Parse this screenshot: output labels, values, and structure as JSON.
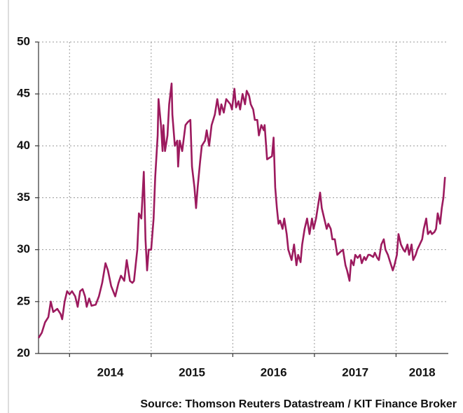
{
  "chart_data": {
    "type": "line",
    "source": "Source: Thomson Reuters Datastream / KIT Finance Broker",
    "xlim": [
      2013.62,
      2018.64
    ],
    "xticks": [
      2014,
      2015,
      2016,
      2017,
      2018
    ],
    "ylim": [
      20,
      50
    ],
    "yticks": [
      20,
      25,
      30,
      35,
      40,
      45,
      50
    ],
    "grid": true,
    "series": [
      {
        "color": "#9c1a5e",
        "x": [
          2013.62,
          2013.66,
          2013.7,
          2013.74,
          2013.77,
          2013.8,
          2013.85,
          2013.89,
          2013.91,
          2013.94,
          2013.97,
          2014.0,
          2014.03,
          2014.07,
          2014.1,
          2014.13,
          2014.16,
          2014.19,
          2014.21,
          2014.24,
          2014.27,
          2014.32,
          2014.36,
          2014.4,
          2014.44,
          2014.47,
          2014.51,
          2014.56,
          2014.6,
          2014.63,
          2014.67,
          2014.7,
          2014.74,
          2014.77,
          2014.79,
          2014.83,
          2014.85,
          2014.88,
          2014.91,
          2014.93,
          2014.95,
          2014.97,
          2015.0,
          2015.03,
          2015.05,
          2015.08,
          2015.09,
          2015.12,
          2015.14,
          2015.15,
          2015.17,
          2015.2,
          2015.22,
          2015.25,
          2015.26,
          2015.29,
          2015.32,
          2015.33,
          2015.35,
          2015.38,
          2015.42,
          2015.45,
          2015.48,
          2015.5,
          2015.53,
          2015.55,
          2015.57,
          2015.6,
          2015.62,
          2015.66,
          2015.68,
          2015.71,
          2015.74,
          2015.78,
          2015.81,
          2015.84,
          2015.86,
          2015.89,
          2015.92,
          2015.97,
          2015.99,
          2016.02,
          2016.04,
          2016.07,
          2016.09,
          2016.12,
          2016.15,
          2016.17,
          2016.2,
          2016.22,
          2016.25,
          2016.27,
          2016.3,
          2016.32,
          2016.35,
          2016.38,
          2016.39,
          2016.42,
          2016.44,
          2016.48,
          2016.5,
          2016.52,
          2016.54,
          2016.56,
          2016.58,
          2016.61,
          2016.63,
          2016.66,
          2016.68,
          2016.72,
          2016.75,
          2016.78,
          2016.8,
          2016.83,
          2016.85,
          2016.88,
          2016.91,
          2016.94,
          2016.97,
          2016.99,
          2017.02,
          2017.04,
          2017.07,
          2017.09,
          2017.12,
          2017.15,
          2017.17,
          2017.2,
          2017.22,
          2017.25,
          2017.28,
          2017.32,
          2017.35,
          2017.38,
          2017.4,
          2017.43,
          2017.45,
          2017.48,
          2017.5,
          2017.53,
          2017.56,
          2017.58,
          2017.61,
          2017.63,
          2017.66,
          2017.68,
          2017.72,
          2017.74,
          2017.77,
          2017.79,
          2017.82,
          2017.85,
          2017.87,
          2017.9,
          2017.92,
          2017.96,
          2017.98,
          2018.01,
          2018.03,
          2018.06,
          2018.09,
          2018.11,
          2018.14,
          2018.16,
          2018.19,
          2018.21,
          2018.24,
          2018.26,
          2018.29,
          2018.32,
          2018.34,
          2018.37,
          2018.39,
          2018.42,
          2018.44,
          2018.47,
          2018.49,
          2018.51,
          2018.54,
          2018.56,
          2018.58,
          2018.6
        ],
        "values": [
          21.5,
          22,
          23,
          23.5,
          25,
          24,
          24.3,
          23.8,
          23.3,
          25,
          26,
          25.7,
          26,
          25.5,
          24.5,
          26,
          26.2,
          25.5,
          24.5,
          25.3,
          24.6,
          24.7,
          25.5,
          26.8,
          28.7,
          28,
          26.5,
          25.5,
          26.8,
          27.5,
          27,
          29,
          27,
          26.8,
          27,
          30,
          33.5,
          33,
          37.5,
          31,
          28,
          30,
          30,
          33,
          37,
          41,
          44.5,
          42,
          39.5,
          42,
          39.5,
          41,
          44,
          46,
          43,
          40,
          40.5,
          38,
          40.5,
          39.5,
          42,
          42.3,
          42.5,
          38,
          36,
          34,
          36,
          38.5,
          40,
          40.5,
          41.5,
          40,
          42,
          43,
          44.5,
          43,
          44,
          43.2,
          44.5,
          44,
          43.5,
          45.5,
          43.7,
          44.3,
          43.5,
          45,
          44,
          45.3,
          44.8,
          44,
          43.5,
          42.5,
          42.5,
          41,
          42,
          41.5,
          42,
          38.7,
          38.8,
          39,
          40.8,
          36,
          34,
          32.5,
          32.8,
          32,
          33,
          31.5,
          30,
          29,
          30.5,
          28.5,
          29.5,
          28.8,
          30.5,
          32,
          33,
          31.5,
          33,
          32,
          33,
          34,
          35.5,
          34,
          33,
          32,
          32.5,
          32,
          31,
          31,
          29.5,
          29.8,
          30,
          28.5,
          28,
          27,
          29,
          28.5,
          29.5,
          29.2,
          29.5,
          28.7,
          29.3,
          29,
          29.5,
          29.5,
          29.3,
          29.7,
          29.2,
          29,
          30.5,
          31,
          30,
          29.5,
          29,
          28,
          28.5,
          29.5,
          31.5,
          30.5,
          30,
          29.8,
          30.5,
          29.5,
          30.5,
          29,
          29.5,
          30,
          30.5,
          31,
          32,
          33,
          31.5,
          31.8,
          31.5,
          31.7,
          32,
          33.5,
          32.5,
          34,
          35,
          37
        ]
      }
    ]
  }
}
